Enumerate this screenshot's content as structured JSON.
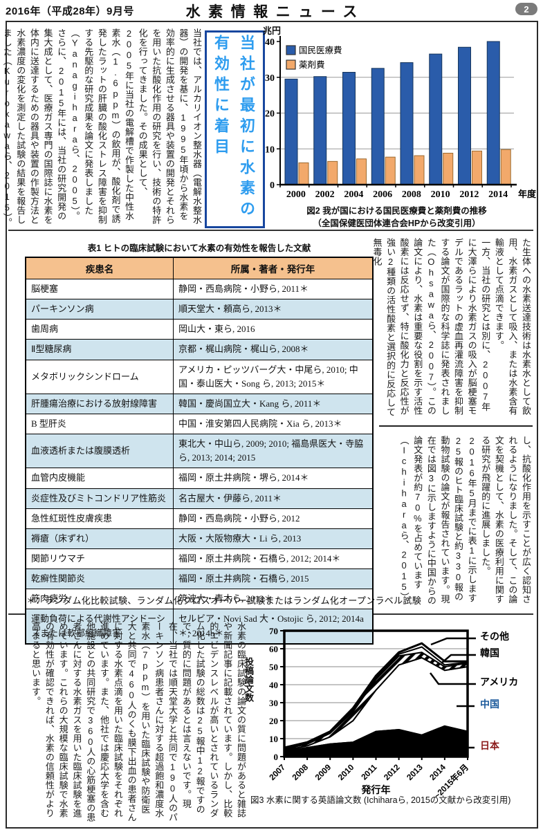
{
  "header": {
    "issue": "2016年（平成28年）9月号",
    "title": "水素情報ニュース",
    "page": "2"
  },
  "sections": {
    "intro": {
      "text": "当社では、アルカリイオン整水器（電解水整水器）の開発を基に、1995年頃から水素を効率的に生成させる器具や装置の開発とそれらを用いた抗酸化作用の研究を行い、技術の特許化を行ってきました。その成果として、2005年に当社の電解槽で作製した中性水素水（1.6ppm）の飲用が、酸化剤で誘発したラットの肝臓の酸化ストレス障害を抑制する先駆的な研究成果を論文に発表しました（Yanagiharaら、2005）。さらに、2015年には、当社の研究開発の集大成として、医療ガス専門の国際誌に水素を体内に送達するための器具や装置の作製方法と水素濃度の変化を測定した試験の結果を報告しました（Kurokawaら、2015）。当社の開発し"
    },
    "highlight_box": {
      "text": "当社が最初に水素の\n有効性に着目"
    },
    "right_top": {
      "text": "た生体への水素送達技術は水素水として飲用、水素ガスとして吸入、または水素含有輸液として点滴できます。\n一方、当社の研究とは別に、2007年に大澤らにより水素ガスの吸入が脳梗塞モデルであるラットの虚血再灌流障害を抑制する論文が国際的な科学誌に発表されました（Ohsawaら、2007）。この論文により、水素は重要な役割を示す活性酸素には反応せず、特に酸化力と反応性が強い2種類の活性酸素と選択的に反応して無毒化"
    },
    "right_bottom": {
      "text": "し、抗酸化作用を示すことが広く認知されるようになりました。そして、この論文を契機として、水素の医療利用に関する研究が飛躍的に進展しました。2016年5月までに表1に示します25報のヒト臨床試験と約330報の動物試験の論文が報告されています。現在では図3に示しますように中国からの論文発表が約70%を占めています（Ichiharaら、2015）。"
    },
    "bottom_left": {
      "text": "水素の臨床試験の論文の質に問題があると雑誌や新聞記事に記載されています。しかし、比較的エビデンスレベルが高いとされているランダム化した試験の総数は25報中12報ですので、質的に問題があるとは言えないです。現在、当社では順天堂大学と共同で190人のパーキンソン病患者さんに対する超過飽和濃度水素水（7ppm）を用いた臨床試験や防衛医大と共同で460人のくも膜下出血の患者さんに対する水素点滴を用いた臨床試験をそれぞれ進めています。また、他社では慶応大学を含む他施設との共同研究で360人の心筋梗塞の患者さんに対する水素ガスを用いた臨床試験を進めています。これらの大規模な臨床試験で水素の有効性が確認できれば、水素の信頼性がより高まると思います。"
    }
  },
  "table1": {
    "title": "表1 ヒトの臨床試験において水素の有効性を報告した文献",
    "columns": [
      "疾患名",
      "所属・著者・発行年"
    ],
    "rows": [
      {
        "disease": "脳梗塞",
        "source": "静岡・西島病院・小野ら, 2011＊"
      },
      {
        "disease": "パーキンソン病",
        "source": "順天堂大・頼高ら, 2013＊"
      },
      {
        "disease": "歯周病",
        "source": "岡山大・東ら, 2016"
      },
      {
        "disease": "Ⅱ型糖尿病",
        "source": "京都・梶山病院・梶山ら, 2008＊"
      },
      {
        "disease": "メタボリックシンドローム",
        "source": "アメリカ・ピッツバーグ大・中尾ら, 2010; 中国・泰山医大・Song ら, 2013; 2015＊"
      },
      {
        "disease": "肝腫瘍治療における放射線障害",
        "source": "韓国・慶尚国立大・Kang ら, 2011＊"
      },
      {
        "disease": "B 型肝炎",
        "source": "中国・淮安第四人民病院・Xia ら, 2013＊"
      },
      {
        "disease": "血液透析または腹膜透析",
        "source": "東北大・中山ら, 2009; 2010; 福島県医大・寺脇ら, 2013; 2014; 2015"
      },
      {
        "disease": "血管内皮機能",
        "source": "福岡・原土井病院・堺ら, 2014＊"
      },
      {
        "disease": "炎症性及びミトコンドリア性筋炎",
        "source": "名古屋大・伊藤ら, 2011＊"
      },
      {
        "disease": "急性紅斑性皮膚疾患",
        "source": "静岡・西島病院・小野ら, 2012"
      },
      {
        "disease": "褥瘡（床ずれ）",
        "source": "大阪・大阪物療大・Li ら, 2013"
      },
      {
        "disease": "関節リウマチ",
        "source": "福岡・原土井病院・石橋ら, 2012; 2014＊"
      },
      {
        "disease": "乾癬性関節炎",
        "source": "福岡・原土井病院・石橋ら, 2015"
      },
      {
        "disease": "筋肉疲労",
        "source": "筑波大・青木ら, 2012＊"
      },
      {
        "disease": "運動負荷による代謝性アシドーシスまたは軟部組織障害",
        "source": "セルビア・Novi Sad 大・Ostojic ら, 2012; 2014a＊; 2014b＊"
      }
    ],
    "footnote": "＊：ランダム化比較試験、ランダム化クロスオーバー試験またはランダム化オープンラベル試験",
    "header_bg": "#F5C18E",
    "zebra_bg": "#CFE4EE"
  },
  "chart_data": [
    {
      "id": "fig2",
      "type": "bar",
      "unit_label": "兆円",
      "categories": [
        "2000",
        "2002",
        "2004",
        "2006",
        "2008",
        "2010",
        "2012",
        "2014"
      ],
      "series": [
        {
          "name": "国民医療費",
          "color": "#2A5CAA",
          "values": [
            29.5,
            30.2,
            31.4,
            32.5,
            34.1,
            36.5,
            38.4,
            40.0
          ]
        },
        {
          "name": "薬剤費",
          "color": "#F2A96B",
          "values": [
            6.1,
            6.5,
            7.2,
            7.7,
            8.1,
            8.8,
            9.4,
            9.8
          ]
        }
      ],
      "ylim": [
        0,
        40
      ],
      "yticks": [
        0,
        10,
        20,
        30,
        40
      ],
      "xlabel": "年度",
      "grid": true,
      "legend_position": "top-left",
      "caption_line1": "図2 我が国における国民医療費と薬剤費の推移",
      "caption_line2": "（全国保健医団体連合会HPから改変引用）"
    },
    {
      "id": "fig3",
      "type": "area",
      "stacked": true,
      "x": [
        "2007",
        "2008",
        "2009",
        "2010",
        "2011",
        "2012",
        "2013",
        "2014",
        "~2015年6月"
      ],
      "ylabel": "投稿論文数",
      "xlabel": "発行年",
      "ylim": [
        0,
        70
      ],
      "yticks": [
        0,
        10,
        20,
        30,
        40,
        50,
        60,
        70
      ],
      "grid": true,
      "series": [
        {
          "name": "日本",
          "fill": "black",
          "label_color": "#8B1A1A",
          "cumulative_top": [
            3,
            5,
            7,
            8,
            14,
            15,
            12,
            17,
            14
          ]
        },
        {
          "name": "中国",
          "fill": "white",
          "label_color": "#1B5A9B",
          "cumulative_top": [
            3.5,
            6,
            11,
            20,
            37,
            51,
            55,
            48,
            50
          ]
        },
        {
          "name": "アメリカ",
          "fill": "hatch",
          "label_color": "#000000",
          "cumulative_top": [
            4.2,
            7,
            13,
            25,
            43,
            56,
            58,
            50,
            52
          ]
        },
        {
          "name": "韓国",
          "fill": "white",
          "label_color": "#000000",
          "cumulative_top": [
            4.6,
            7.5,
            13.5,
            26,
            44,
            57,
            61,
            51,
            52.5
          ]
        },
        {
          "name": "その他",
          "fill": "white",
          "label_color": "#000000",
          "cumulative_top": [
            5,
            8,
            14,
            27,
            45,
            58,
            63,
            53,
            53
          ]
        }
      ],
      "caption": "図3 水素に関する英語論文数 (Ichiharaら, 2015の文献から改変引用)"
    }
  ]
}
